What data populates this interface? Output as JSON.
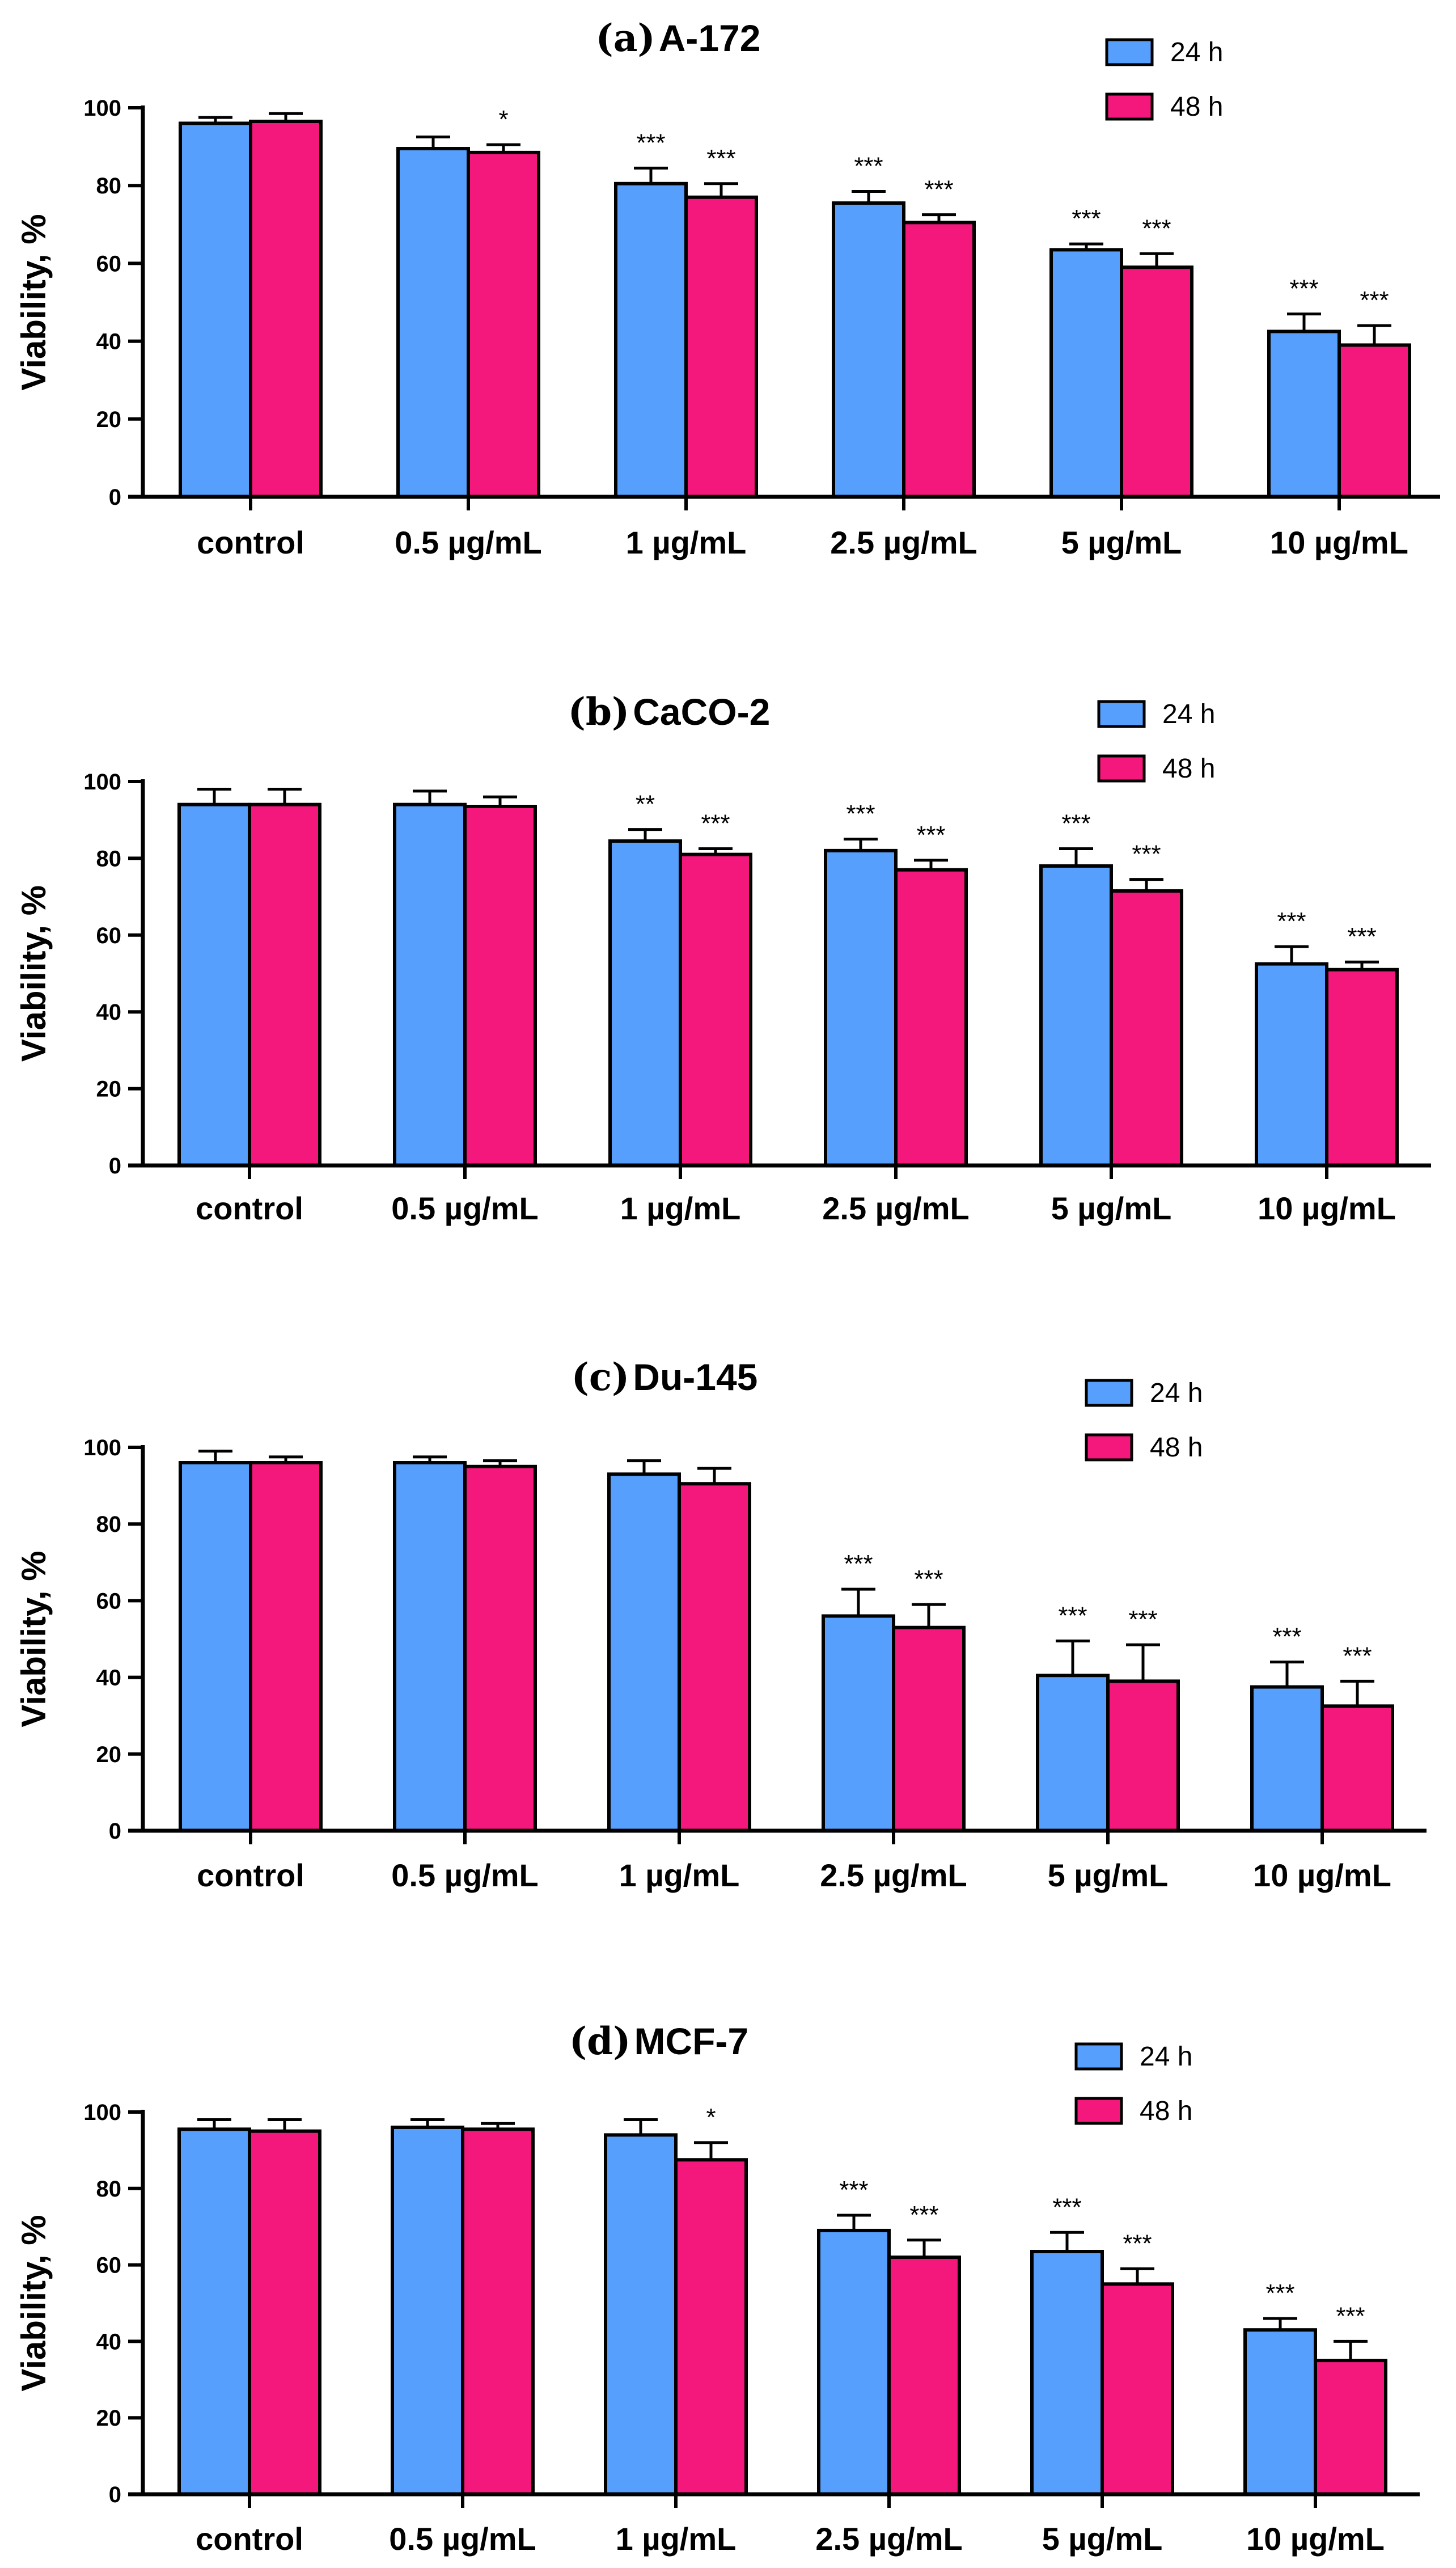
{
  "chart_data": [
    {
      "type": "bar",
      "panel_label": "(a)",
      "title": "A-172",
      "ylabel": "Viability, %",
      "xlabel": "",
      "ylim": [
        0,
        100
      ],
      "yticks": [
        "0",
        "20",
        "40",
        "60",
        "80",
        "100"
      ],
      "categories": [
        "control",
        "0.5 µg/mL",
        "1 µg/mL",
        "2.5 µg/mL",
        "5 µg/mL",
        "10 µg/mL"
      ],
      "legend_position": "top-right",
      "series": [
        {
          "name": "24 h",
          "color": "#569ffc",
          "values": [
            96,
            89.5,
            80.5,
            75.5,
            63.5,
            42.5
          ],
          "errors": [
            1.5,
            3,
            4,
            3,
            1.5,
            4.5
          ],
          "significance": [
            "",
            "",
            "***",
            "***",
            "***",
            "***"
          ]
        },
        {
          "name": "48 h",
          "color": "#f5187c",
          "values": [
            96.5,
            88.5,
            77,
            70.5,
            59,
            39
          ],
          "errors": [
            2,
            2,
            3.5,
            2,
            3.5,
            5
          ],
          "significance": [
            "",
            "*",
            "***",
            "***",
            "***",
            "***"
          ]
        }
      ]
    },
    {
      "type": "bar",
      "panel_label": "(b)",
      "title": "CaCO-2",
      "ylabel": "Viability, %",
      "xlabel": "",
      "ylim": [
        0,
        100
      ],
      "yticks": [
        "0",
        "20",
        "40",
        "60",
        "80",
        "100"
      ],
      "categories": [
        "control",
        "0.5 µg/mL",
        "1 µg/mL",
        "2.5 µg/mL",
        "5 µg/mL",
        "10 µg/mL"
      ],
      "legend_position": "top-right",
      "series": [
        {
          "name": "24 h",
          "color": "#569ffc",
          "values": [
            94,
            94,
            84.5,
            82,
            78,
            52.5
          ],
          "errors": [
            4,
            3.5,
            3,
            3,
            4.5,
            4.5
          ],
          "significance": [
            "",
            "",
            "**",
            "***",
            "***",
            "***"
          ]
        },
        {
          "name": "48 h",
          "color": "#f5187c",
          "values": [
            94,
            93.5,
            81,
            77,
            71.5,
            51
          ],
          "errors": [
            4,
            2.5,
            1.5,
            2.5,
            3,
            2
          ],
          "significance": [
            "",
            "",
            "***",
            "***",
            "***",
            "***"
          ]
        }
      ]
    },
    {
      "type": "bar",
      "panel_label": "(c)",
      "title": "Du-145",
      "ylabel": "Viability, %",
      "xlabel": "",
      "ylim": [
        0,
        100
      ],
      "yticks": [
        "0",
        "20",
        "40",
        "60",
        "80",
        "100"
      ],
      "categories": [
        "control",
        "0.5 µg/mL",
        "1 µg/mL",
        "2.5 µg/mL",
        "5 µg/mL",
        "10 µg/mL"
      ],
      "legend_position": "top-right",
      "series": [
        {
          "name": "24 h",
          "color": "#569ffc",
          "values": [
            96,
            96,
            93,
            56,
            40.5,
            37.5
          ],
          "errors": [
            3,
            1.5,
            3.5,
            7,
            9,
            6.5
          ],
          "significance": [
            "",
            "",
            "",
            "***",
            "***",
            "***"
          ]
        },
        {
          "name": "48 h",
          "color": "#f5187c",
          "values": [
            96,
            95,
            90.5,
            53,
            39,
            32.5
          ],
          "errors": [
            1.5,
            1.5,
            4,
            6,
            9.5,
            6.5
          ],
          "significance": [
            "",
            "",
            "",
            "***",
            "***",
            "***"
          ]
        }
      ]
    },
    {
      "type": "bar",
      "panel_label": "(d)",
      "title": "MCF-7",
      "ylabel": "Viability, %",
      "xlabel": "",
      "ylim": [
        0,
        100
      ],
      "yticks": [
        "0",
        "20",
        "40",
        "60",
        "80",
        "100"
      ],
      "categories": [
        "control",
        "0.5 µg/mL",
        "1 µg/mL",
        "2.5 µg/mL",
        "5 µg/mL",
        "10 µg/mL"
      ],
      "legend_position": "top-right",
      "series": [
        {
          "name": "24 h",
          "color": "#569ffc",
          "values": [
            95.5,
            96,
            94,
            69,
            63.5,
            43
          ],
          "errors": [
            2.5,
            2,
            4,
            4,
            5,
            3
          ],
          "significance": [
            "",
            "",
            "",
            "***",
            "***",
            "***"
          ]
        },
        {
          "name": "48 h",
          "color": "#f5187c",
          "values": [
            95,
            95.5,
            87.5,
            62,
            55,
            35
          ],
          "errors": [
            3,
            1.5,
            4.5,
            4.5,
            4,
            5
          ],
          "significance": [
            "",
            "",
            "*",
            "***",
            "***",
            "***"
          ]
        }
      ]
    }
  ]
}
